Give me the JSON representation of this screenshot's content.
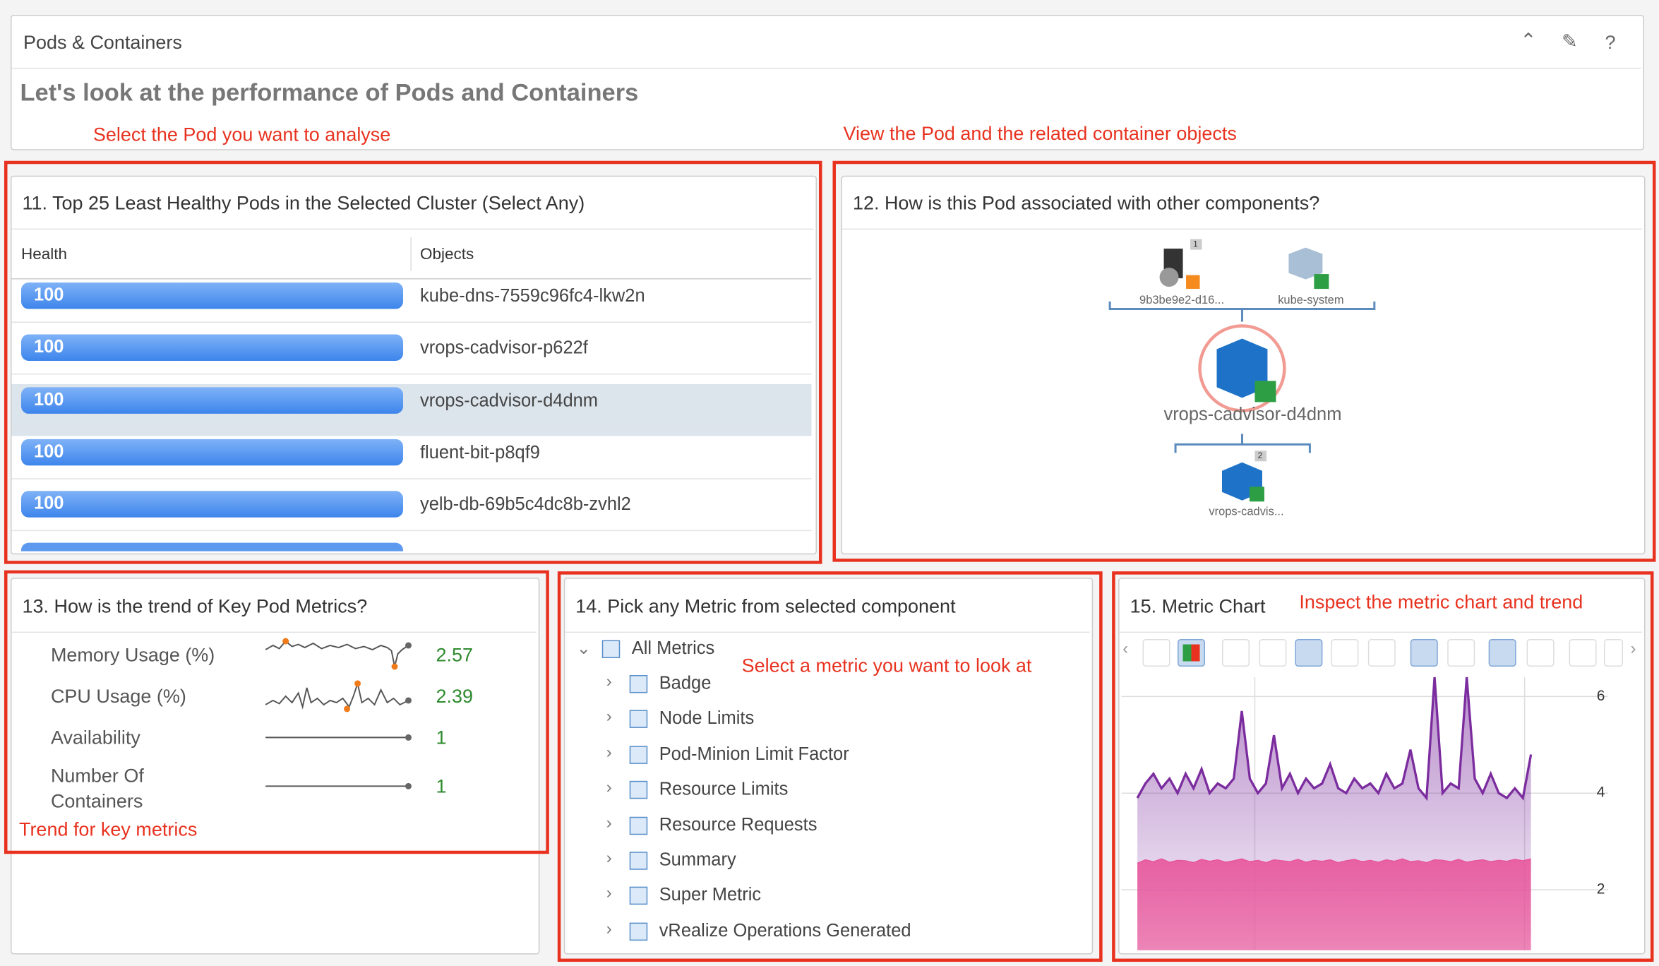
{
  "header": {
    "title": "Pods & Containers",
    "subtitle": "Let's look at the performance of Pods and Containers"
  },
  "annotations": [
    "Select the Pod you want to analyse",
    "View the Pod and the related container objects",
    "Trend for key metrics",
    "Select a metric you want to look at",
    "Inspect the metric chart and trend"
  ],
  "pods": {
    "title": "11. Top 25 Least Healthy Pods in the Selected Cluster (Select Any)",
    "columns": [
      "Health",
      "Objects"
    ],
    "rows": [
      {
        "health": 100,
        "object": "kube-dns-7559c96fc4-lkw2n"
      },
      {
        "health": 100,
        "object": "vrops-cadvisor-p622f"
      },
      {
        "health": 100,
        "object": "vrops-cadvisor-d4dnm"
      },
      {
        "health": 100,
        "object": "fluent-bit-p8qf9"
      },
      {
        "health": 100,
        "object": "yelb-db-69b5c4dc8b-zvhl2"
      }
    ]
  },
  "relationships": {
    "title": "12. How is this Pod associated with other components?",
    "nodes": [
      {
        "label": "9b3be9e2-d16...",
        "badge": 1
      },
      {
        "label": "kube-system"
      },
      {
        "label": "vrops-cadvisor-d4dnm"
      },
      {
        "label": "vrops-cadvis...",
        "badge": 2
      }
    ]
  },
  "trend": {
    "title": "13. How is the trend of Key Pod Metrics?",
    "metrics": [
      {
        "name": "Memory Usage (%)",
        "value": 2.57
      },
      {
        "name": "CPU Usage (%)",
        "value": 2.39
      },
      {
        "name": "Availability",
        "value": 1
      },
      {
        "name": "Number Of Containers",
        "value": 1
      }
    ]
  },
  "metric_picker": {
    "title": "14. Pick any Metric from selected component",
    "root": "All Metrics",
    "items": [
      "Badge",
      "Node Limits",
      "Pod-Minion Limit Factor",
      "Resource Limits",
      "Resource Requests",
      "Summary",
      "Super Metric",
      "vRealize Operations Generated"
    ]
  },
  "metric_chart": {
    "type": "area",
    "title": "15. Metric Chart",
    "ylim": [
      0.75,
      6.4
    ],
    "yticks": [
      2,
      4,
      6
    ],
    "series": [
      {
        "color": "#7b2c9e",
        "values": [
          3.9,
          4.2,
          4.4,
          4.1,
          4.3,
          4.0,
          4.4,
          4.1,
          4.5,
          4.0,
          4.2,
          4.1,
          4.3,
          5.7,
          4.3,
          4.0,
          4.2,
          5.2,
          4.1,
          4.4,
          4.0,
          4.3,
          4.1,
          4.2,
          4.6,
          4.1,
          4.0,
          4.3,
          4.1,
          4.2,
          4.0,
          4.4,
          4.1,
          4.2,
          4.9,
          4.1,
          3.9,
          6.4,
          4.0,
          4.2,
          4.1,
          6.4,
          4.3,
          4.0,
          4.4,
          4.0,
          3.9,
          4.1,
          3.9,
          4.8
        ]
      },
      {
        "color": "#e8559b",
        "values": [
          2.55,
          2.62,
          2.58,
          2.64,
          2.57,
          2.61,
          2.6,
          2.56,
          2.63,
          2.59,
          2.62,
          2.57,
          2.6,
          2.64,
          2.58,
          2.61,
          2.56,
          2.62,
          2.6,
          2.58,
          2.63,
          2.57,
          2.61,
          2.59,
          2.62,
          2.56,
          2.6,
          2.63,
          2.58,
          2.61,
          2.57,
          2.62,
          2.59,
          2.64,
          2.58,
          2.6,
          2.56,
          2.62,
          2.61,
          2.58,
          2.63,
          2.57,
          2.6,
          2.62,
          2.58,
          2.61,
          2.59,
          2.63,
          2.6,
          2.64
        ]
      }
    ]
  }
}
